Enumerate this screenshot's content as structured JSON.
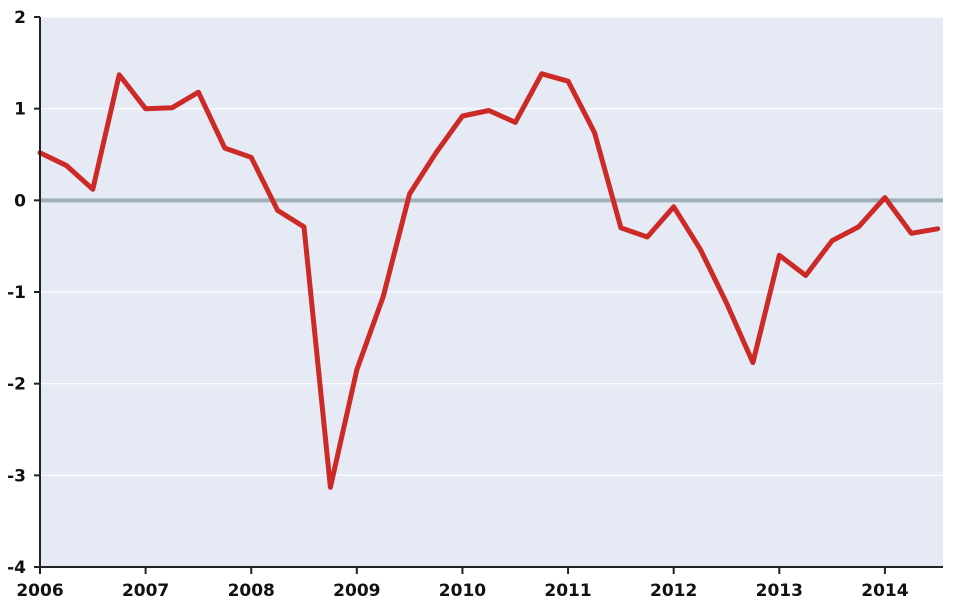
{
  "chart_data": {
    "type": "line",
    "title": "",
    "xlabel": "",
    "ylabel": "",
    "xlim": [
      2006.0,
      2014.55
    ],
    "ylim": [
      -4,
      2
    ],
    "y_ticks": [
      2,
      1,
      0,
      -1,
      -2,
      -3,
      -4
    ],
    "y_tick_labels": [
      "2",
      "1",
      "0",
      "-1",
      "-2",
      "-3",
      "-4"
    ],
    "x_ticks": [
      2006,
      2007,
      2008,
      2009,
      2010,
      2011,
      2012,
      2013,
      2014
    ],
    "x_tick_labels": [
      "2006",
      "2007",
      "2008",
      "2009",
      "2010",
      "2011",
      "2012",
      "2013",
      "2014"
    ],
    "grid": true,
    "legend": "none",
    "reference_line": {
      "y": 0,
      "color": "#a0b0b8"
    },
    "colors": {
      "series": "#cc2a27",
      "plot_background": "#e6eaf4",
      "gridline": "#ffffff",
      "axis": "#222222"
    },
    "series": [
      {
        "points": [
          [
            2006.0,
            0.52
          ],
          [
            2006.25,
            0.38
          ],
          [
            2006.5,
            0.12
          ],
          [
            2006.75,
            1.37
          ],
          [
            2007.0,
            1.0
          ],
          [
            2007.25,
            1.01
          ],
          [
            2007.5,
            1.18
          ],
          [
            2007.75,
            0.57
          ],
          [
            2008.0,
            0.47
          ],
          [
            2008.25,
            -0.11
          ],
          [
            2008.5,
            -0.29
          ],
          [
            2008.75,
            -3.13
          ],
          [
            2009.0,
            -1.85
          ],
          [
            2009.25,
            -1.05
          ],
          [
            2009.5,
            0.07
          ],
          [
            2009.75,
            0.52
          ],
          [
            2010.0,
            0.92
          ],
          [
            2010.25,
            0.98
          ],
          [
            2010.5,
            0.85
          ],
          [
            2010.75,
            1.38
          ],
          [
            2011.0,
            1.3
          ],
          [
            2011.25,
            0.74
          ],
          [
            2011.5,
            -0.3
          ],
          [
            2011.75,
            -0.4
          ],
          [
            2012.0,
            -0.07
          ],
          [
            2012.25,
            -0.53
          ],
          [
            2012.5,
            -1.12
          ],
          [
            2012.75,
            -1.77
          ],
          [
            2013.0,
            -0.6
          ],
          [
            2013.25,
            -0.82
          ],
          [
            2013.5,
            -0.44
          ],
          [
            2013.75,
            -0.29
          ],
          [
            2014.0,
            0.03
          ],
          [
            2014.25,
            -0.36
          ],
          [
            2014.5,
            -0.31
          ]
        ]
      }
    ]
  }
}
